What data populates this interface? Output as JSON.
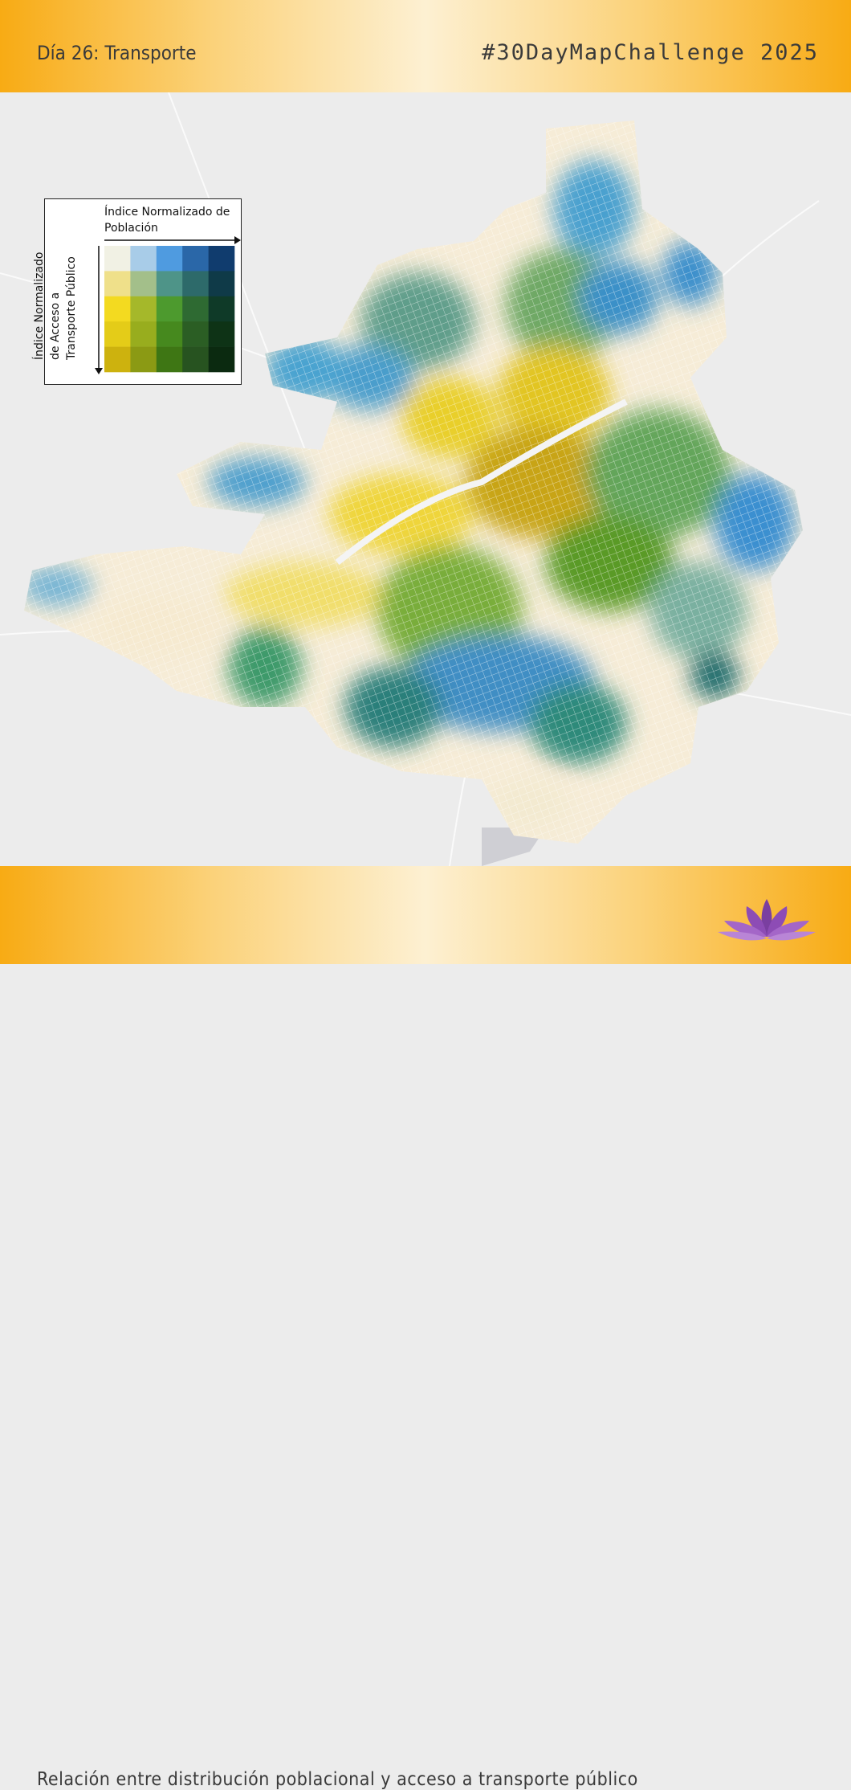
{
  "header": {
    "title": "Día 26: Transporte",
    "challenge": "#30DayMapChallenge  2025"
  },
  "legend": {
    "x_title": "Índice Normalizado de Población",
    "y_title": "Índice Normalizado de Acceso a Transporte Público",
    "colors": [
      [
        "#f1f1e4",
        "#a8cce8",
        "#4f9be0",
        "#2a67a8",
        "#103c6e"
      ],
      [
        "#efe08a",
        "#a3bf8a",
        "#4e9488",
        "#2d6a6a",
        "#0f3a48"
      ],
      [
        "#f3da20",
        "#a5b82a",
        "#4d9a2e",
        "#2e6a32",
        "#0f3a28"
      ],
      [
        "#e4cc18",
        "#98ad1e",
        "#46891e",
        "#2b5e24",
        "#0e3316"
      ],
      [
        "#cdb20e",
        "#8b9a14",
        "#3e7614",
        "#275320",
        "#0b2a10"
      ]
    ]
  },
  "footer": {
    "caption": "Relación entre distribución poblacional y acceso a transporte público"
  }
}
